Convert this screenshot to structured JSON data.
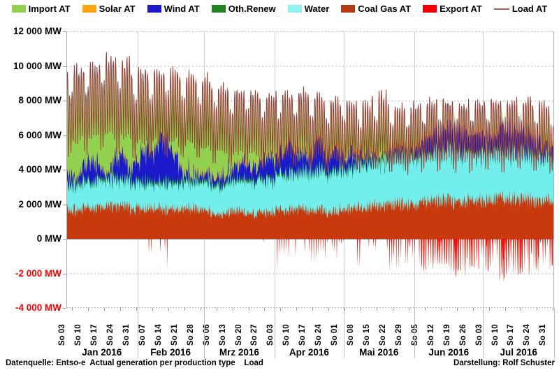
{
  "legend": {
    "items": [
      {
        "label": "Import AT",
        "color": "#92D04F",
        "swatch": "box"
      },
      {
        "label": "Solar AT",
        "color": "#FFA512",
        "swatch": "box"
      },
      {
        "label": "Wind AT",
        "color": "#1A1ACC",
        "swatch": "box"
      },
      {
        "label": "Oth.Renew",
        "color": "#1E8220",
        "swatch": "box"
      },
      {
        "label": "Water",
        "color": "#8FF2EF",
        "swatch": "box"
      },
      {
        "label": "Coal Gas AT",
        "color": "#B43A12",
        "swatch": "box"
      },
      {
        "label": "Export AT",
        "color": "#F40000",
        "swatch": "box"
      },
      {
        "label": "Load AT",
        "color": "#9A6860",
        "swatch": "line"
      }
    ]
  },
  "y_axis": {
    "unit": "MW",
    "tick_labels": [
      "12 000 MW",
      "10 000 MW",
      "8 000 MW",
      "6 000 MW",
      "4 000 MW",
      "2 000 MW",
      "0 MW",
      "-2 000 MW",
      "-4 000 MW"
    ],
    "tick_values": [
      12000,
      10000,
      8000,
      6000,
      4000,
      2000,
      0,
      -2000,
      -4000
    ],
    "negative_label_color": "#FF0000"
  },
  "footer": {
    "left": "Datenquelle: Entso-e  Actual generation per production type    Load",
    "right": "Darstellung: Rolf Schuster"
  },
  "chart_data": {
    "type": "area",
    "stacked": true,
    "y_unit": "MW",
    "ylim": [
      -4000,
      12000
    ],
    "grid": "dotted horizontal every 2000 MW; vertical separators at month boundaries",
    "legend_position": "top",
    "days_total": 213,
    "x_tick_labels": [
      "So 03",
      "So 10",
      "So 17",
      "So 24",
      "So 31",
      "So 07",
      "So 14",
      "So 21",
      "So 28",
      "So 06",
      "So 13",
      "So 20",
      "So 27",
      "So 03",
      "So 10",
      "So 17",
      "So 24",
      "So 01",
      "So 08",
      "So 15",
      "So 22",
      "So 29",
      "So 05",
      "So 12",
      "So 19",
      "So 26",
      "So 03",
      "So 10",
      "So 17",
      "So 24",
      "So 31"
    ],
    "x_tick_days": [
      2,
      9,
      16,
      23,
      30,
      37,
      44,
      51,
      58,
      65,
      72,
      79,
      86,
      93,
      100,
      107,
      114,
      121,
      128,
      135,
      142,
      149,
      156,
      163,
      170,
      177,
      184,
      191,
      198,
      205,
      212
    ],
    "months": [
      {
        "label": "Jan 2016",
        "start_day": 0,
        "end_day": 31
      },
      {
        "label": "Feb 2016",
        "start_day": 31,
        "end_day": 60
      },
      {
        "label": "Mrz 2016",
        "start_day": 60,
        "end_day": 91
      },
      {
        "label": "Apr 2016",
        "start_day": 91,
        "end_day": 121
      },
      {
        "label": "Mai 2016",
        "start_day": 121,
        "end_day": 152
      },
      {
        "label": "Jun 2016",
        "start_day": 152,
        "end_day": 182
      },
      {
        "label": "Jul 2016",
        "start_day": 182,
        "end_day": 213
      }
    ],
    "stack_order_bottom_up": [
      "coal_gas",
      "water",
      "oth_renew",
      "wind",
      "solar",
      "import"
    ],
    "series_weekly_mean_mw": {
      "coal_gas": [
        1700,
        1800,
        1900,
        1900,
        1800,
        1800,
        1700,
        1800,
        1700,
        1500,
        1600,
        1500,
        1600,
        1700,
        1800,
        1700,
        1600,
        1800,
        1900,
        2000,
        2100,
        2000,
        2200,
        2300,
        2200,
        2300,
        2300,
        2400,
        2300,
        2200,
        2300
      ],
      "water": [
        1400,
        1450,
        1500,
        1500,
        1450,
        1400,
        1500,
        1500,
        1550,
        1600,
        1700,
        1800,
        1850,
        2000,
        2100,
        2200,
        2250,
        2300,
        2400,
        2500,
        2550,
        2600,
        2600,
        2700,
        2700,
        2650,
        2600,
        2550,
        2500,
        2450,
        2400
      ],
      "wind": [
        900,
        1100,
        800,
        1300,
        1200,
        1500,
        1200,
        1000,
        1400,
        1100,
        900,
        1200,
        800,
        900,
        700,
        1000,
        800,
        600,
        700,
        500,
        800,
        700,
        500,
        600,
        700,
        600,
        500,
        800,
        900,
        700,
        600
      ],
      "oth_renew": 150,
      "solar_midday": [
        100,
        100,
        120,
        120,
        150,
        150,
        180,
        200,
        220,
        250,
        280,
        300,
        320,
        350,
        360,
        380,
        390,
        400,
        410,
        420,
        430,
        440,
        450,
        450,
        460,
        460,
        460,
        450,
        450,
        440,
        430
      ],
      "import": [
        1800,
        1700,
        1900,
        1800,
        1600,
        1500,
        1600,
        1500,
        1400,
        1400,
        1300,
        1200,
        1300,
        1100,
        1200,
        1000,
        900,
        800,
        700,
        800,
        700,
        600,
        600,
        700,
        600,
        700,
        800,
        700,
        600,
        700,
        600
      ]
    },
    "load_peak_mw": [
      9800,
      10000,
      10400,
      10200,
      9600,
      9700,
      9800,
      9500,
      9300,
      8900,
      8700,
      8500,
      8300,
      8300,
      8500,
      8200,
      8000,
      8000,
      7800,
      8300,
      7600,
      7700,
      7900,
      8000,
      7800,
      7900,
      8000,
      7900,
      8100,
      7800,
      7600
    ],
    "export_min_mw": [
      -300,
      -400,
      -600,
      -500,
      -800,
      -900,
      -2100,
      -1200,
      -800,
      -600,
      -700,
      -500,
      -900,
      -1800,
      -1200,
      -1500,
      -1400,
      -1500,
      -1900,
      -1700,
      -2000,
      -1800,
      -1900,
      -1700,
      -2100,
      -1800,
      -2000,
      -2400,
      -2200,
      -2100,
      -1900
    ],
    "colors": {
      "import": "#92D04F",
      "solar": "#FFA512",
      "wind": "#1A1ACC",
      "oth_renew": "#1E8220",
      "water": "#72EFEC",
      "coal_gas": "#C83A0E",
      "export": "#EE1408",
      "load": "#953E36"
    }
  }
}
